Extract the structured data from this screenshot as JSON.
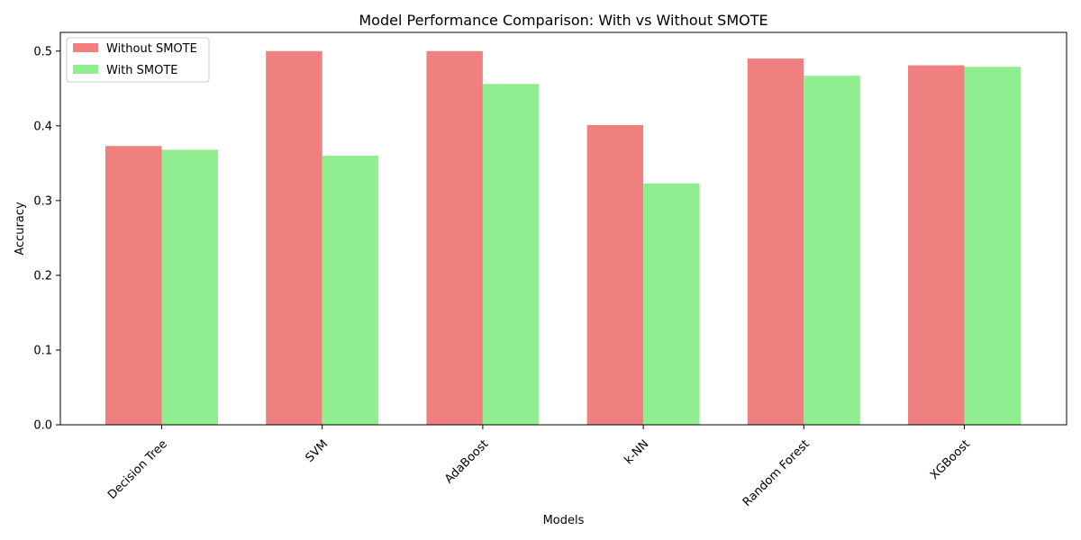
{
  "chart_data": {
    "type": "bar",
    "title": "Model Performance Comparison: With vs Without SMOTE",
    "xlabel": "Models",
    "ylabel": "Accuracy",
    "categories": [
      "Decision Tree",
      "SVM",
      "AdaBoost",
      "k-NN",
      "Random Forest",
      "XGBoost"
    ],
    "series": [
      {
        "name": "Without SMOTE",
        "color": "#f08080",
        "values": [
          0.373,
          0.5,
          0.5,
          0.401,
          0.49,
          0.481
        ]
      },
      {
        "name": "With SMOTE",
        "color": "#90ee90",
        "values": [
          0.368,
          0.36,
          0.456,
          0.323,
          0.467,
          0.479
        ]
      }
    ],
    "ylim": [
      0,
      0.525
    ],
    "yticks": [
      "0.0",
      "0.1",
      "0.2",
      "0.3",
      "0.4",
      "0.5"
    ],
    "grid": false,
    "legend_position": "top-left",
    "tick_label_rotation": -45
  }
}
